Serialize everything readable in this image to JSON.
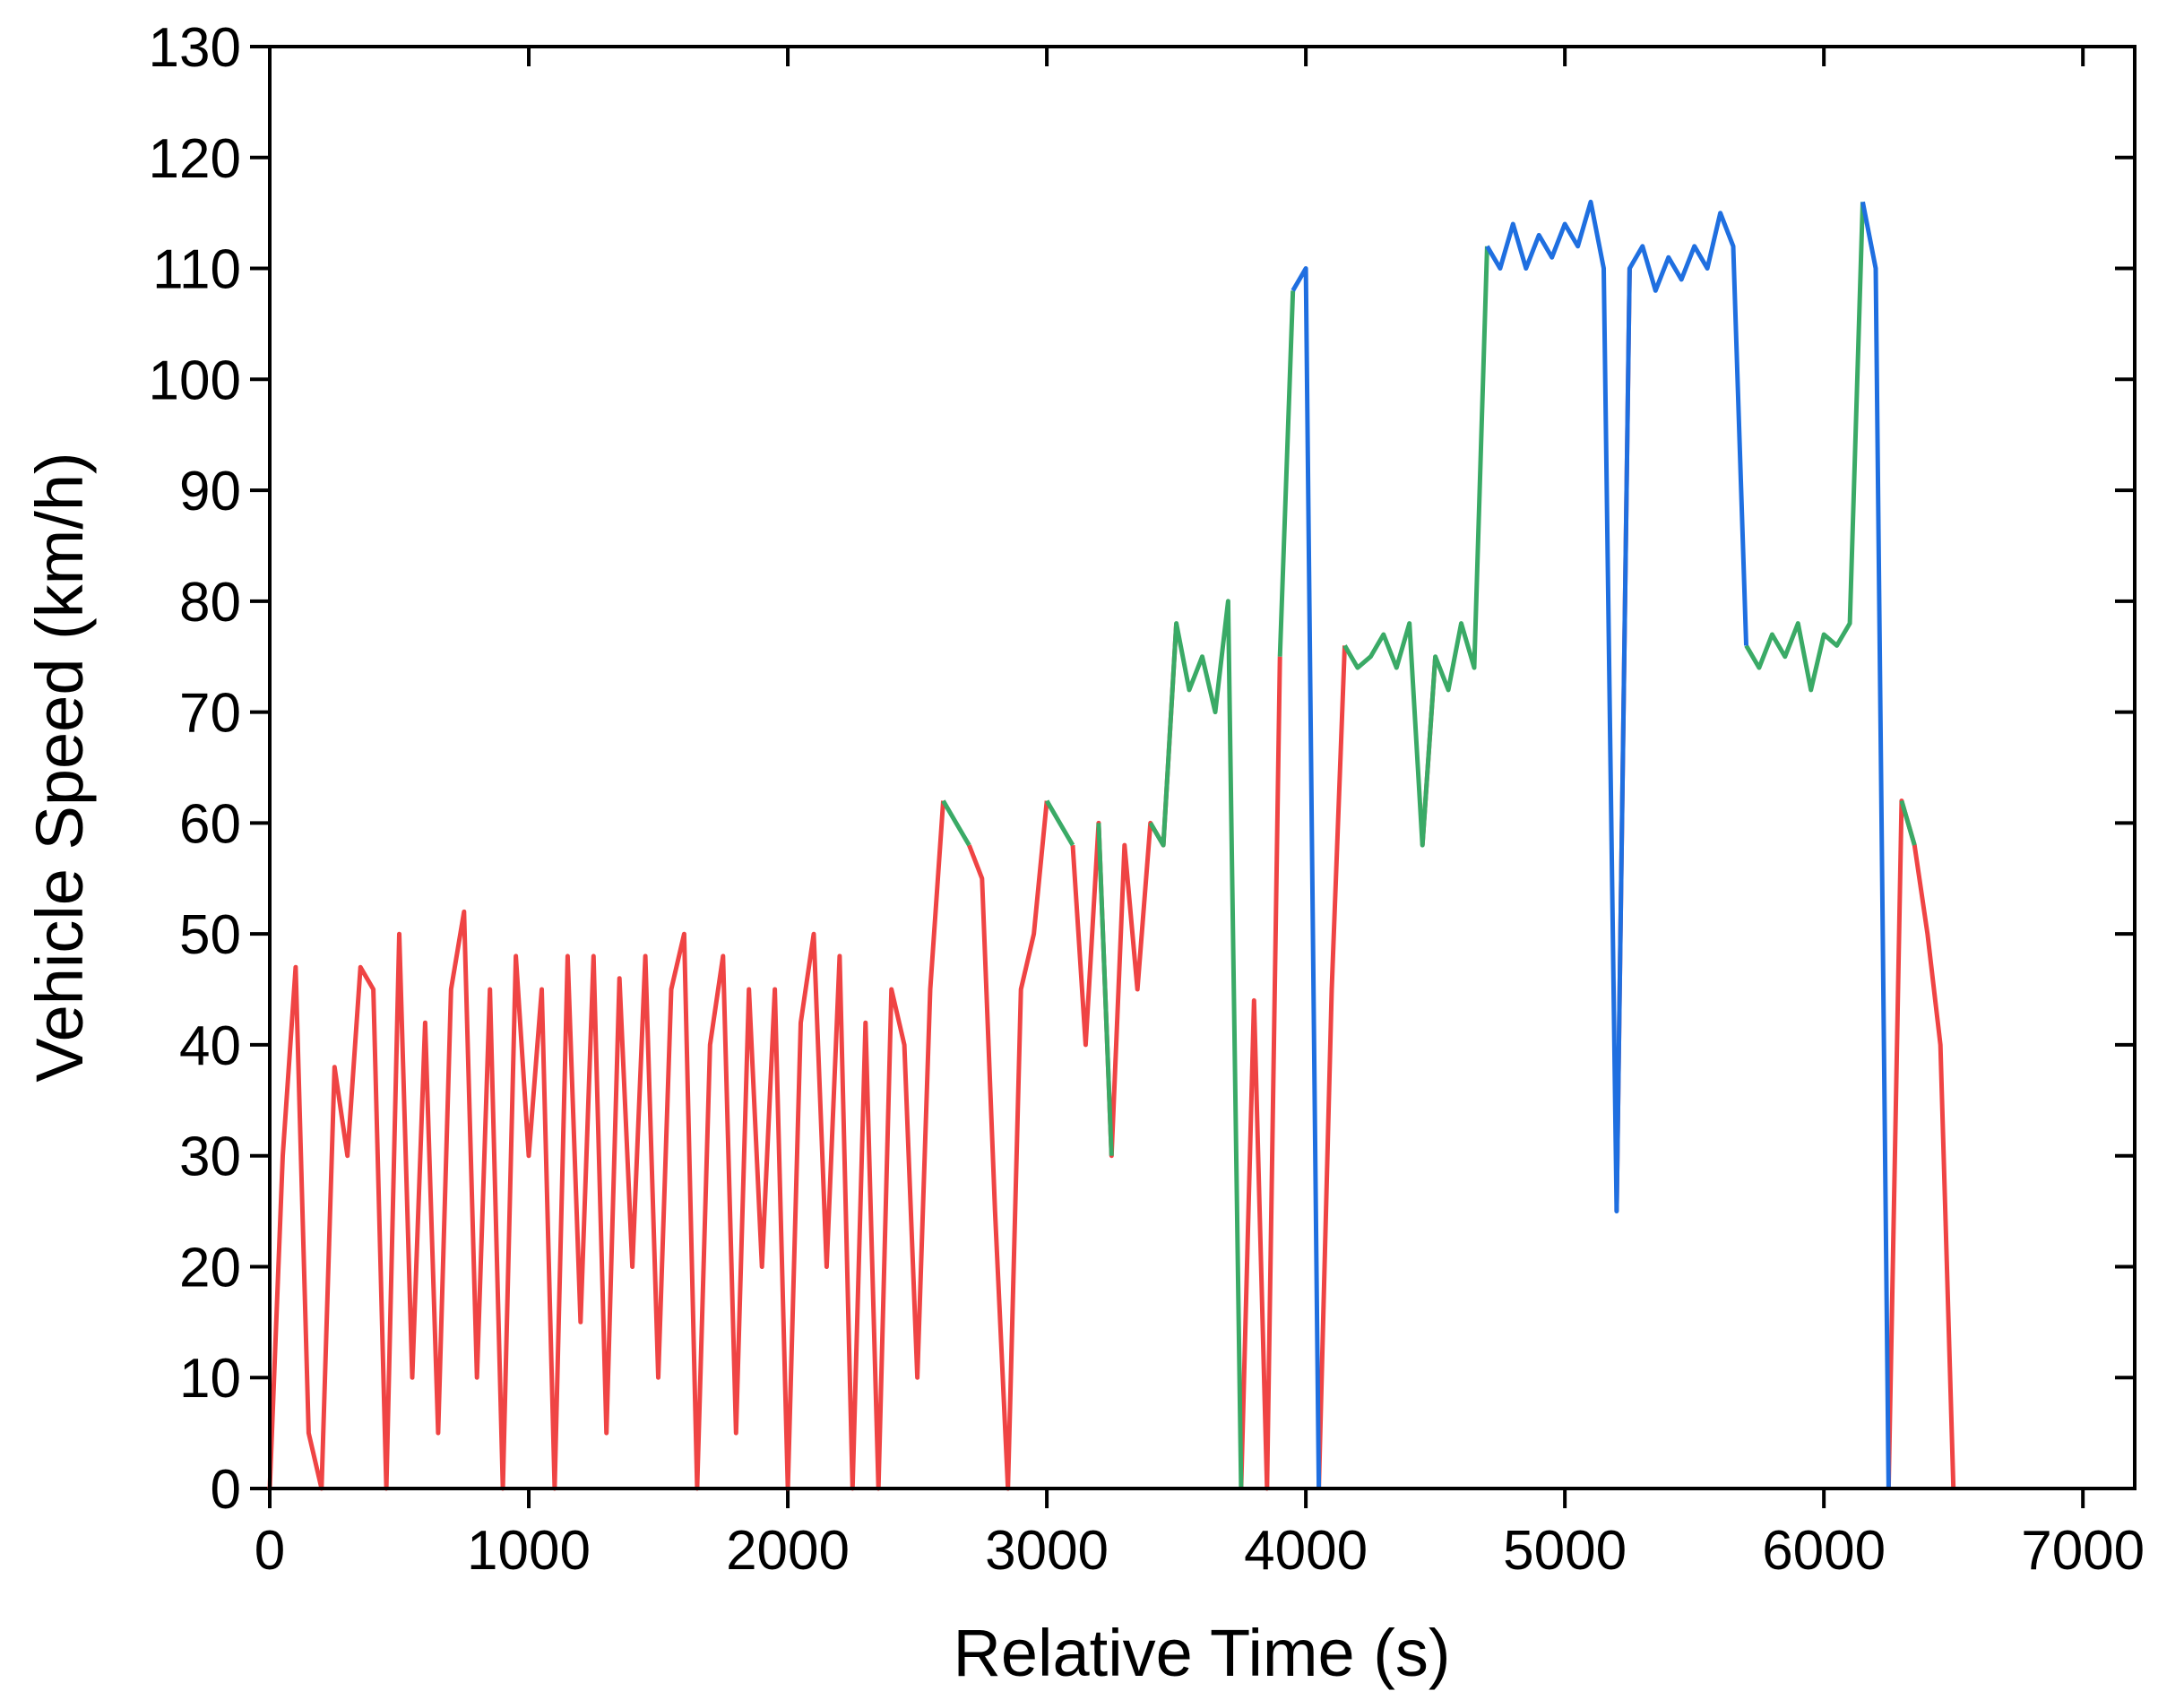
{
  "chart_data": {
    "type": "line",
    "xlabel": "Relative Time (s)",
    "ylabel": "Vehicle Speed (km/h)",
    "xlim": [
      0,
      7200
    ],
    "ylim": [
      0,
      130
    ],
    "xticks": [
      0,
      1000,
      2000,
      3000,
      4000,
      5000,
      6000,
      7000
    ],
    "yticks": [
      0,
      10,
      20,
      30,
      40,
      50,
      60,
      70,
      80,
      90,
      100,
      110,
      120,
      130
    ],
    "x": [
      0,
      50,
      100,
      150,
      200,
      250,
      300,
      350,
      400,
      450,
      500,
      550,
      600,
      650,
      700,
      750,
      800,
      850,
      900,
      950,
      1000,
      1050,
      1100,
      1150,
      1200,
      1250,
      1300,
      1350,
      1400,
      1450,
      1500,
      1550,
      1600,
      1650,
      1700,
      1750,
      1800,
      1850,
      1900,
      1950,
      2000,
      2050,
      2100,
      2150,
      2200,
      2250,
      2300,
      2350,
      2400,
      2450,
      2500,
      2550,
      2600,
      2650,
      2700,
      2750,
      2800,
      2850,
      2900,
      2950,
      3000,
      3050,
      3100,
      3150,
      3200,
      3250,
      3300,
      3350,
      3400,
      3450,
      3500,
      3550,
      3600,
      3650,
      3700,
      3750,
      3800,
      3850,
      3900,
      3950,
      4000,
      4050,
      4100,
      4150,
      4200,
      4250,
      4300,
      4350,
      4400,
      4450,
      4500,
      4550,
      4600,
      4650,
      4700,
      4750,
      4800,
      4850,
      4900,
      4950,
      5000,
      5050,
      5100,
      5150,
      5200,
      5250,
      5300,
      5350,
      5400,
      5450,
      5500,
      5550,
      5600,
      5650,
      5700,
      5750,
      5800,
      5850,
      5900,
      5950,
      6000,
      6050,
      6100,
      6150,
      6200,
      6250,
      6300,
      6350,
      6400,
      6450,
      6500
    ],
    "series": [
      {
        "color": "#ef4444",
        "values": [
          0,
          30,
          47,
          5,
          0,
          38,
          30,
          47,
          45,
          0,
          50,
          10,
          42,
          5,
          45,
          52,
          10,
          45,
          0,
          48,
          30,
          45,
          0,
          48,
          15,
          48,
          5,
          46,
          20,
          48,
          10,
          45,
          50,
          0,
          40,
          48,
          5,
          45,
          20,
          45,
          0,
          42,
          50,
          20,
          48,
          0,
          42,
          0,
          45,
          40,
          10,
          45,
          62,
          null,
          58,
          55,
          25,
          0,
          45,
          50,
          62,
          null,
          58,
          40,
          60,
          30,
          58,
          45,
          60,
          58,
          78,
          null,
          null,
          null,
          null,
          0,
          44,
          0,
          75,
          null,
          null,
          0,
          45,
          76,
          null,
          null,
          null,
          null,
          null,
          58,
          75,
          null,
          null,
          null,
          null,
          null,
          null,
          null,
          null,
          null,
          null,
          null,
          null,
          null,
          25,
          110,
          null,
          null,
          null,
          null,
          null,
          null,
          null,
          null,
          null,
          null,
          null,
          null,
          null,
          null,
          null,
          null,
          null,
          null,
          null,
          0,
          62,
          58,
          50,
          40,
          0
        ]
      },
      {
        "color": "#3aaa66",
        "values": [
          null,
          null,
          null,
          null,
          null,
          null,
          null,
          null,
          null,
          null,
          null,
          null,
          null,
          null,
          null,
          null,
          null,
          null,
          null,
          null,
          null,
          null,
          null,
          null,
          null,
          null,
          null,
          null,
          null,
          null,
          null,
          null,
          null,
          null,
          null,
          null,
          null,
          null,
          null,
          null,
          null,
          null,
          null,
          null,
          null,
          null,
          null,
          null,
          null,
          null,
          null,
          null,
          62,
          60,
          58,
          null,
          null,
          null,
          null,
          null,
          62,
          60,
          58,
          null,
          60,
          30,
          null,
          null,
          60,
          58,
          78,
          72,
          75,
          70,
          80,
          0,
          null,
          null,
          75,
          108,
          null,
          null,
          null,
          76,
          74,
          75,
          77,
          74,
          78,
          58,
          75,
          72,
          78,
          74,
          112,
          null,
          null,
          null,
          null,
          null,
          null,
          null,
          null,
          null,
          null,
          null,
          null,
          null,
          null,
          null,
          null,
          null,
          null,
          null,
          76,
          74,
          77,
          75,
          78,
          72,
          77,
          76,
          78,
          116,
          null,
          null,
          62,
          58,
          null,
          null,
          null
        ]
      },
      {
        "color": "#1f6fe0",
        "values": [
          null,
          null,
          null,
          null,
          null,
          null,
          null,
          null,
          null,
          null,
          null,
          null,
          null,
          null,
          null,
          null,
          null,
          null,
          null,
          null,
          null,
          null,
          null,
          null,
          null,
          null,
          null,
          null,
          null,
          null,
          null,
          null,
          null,
          null,
          null,
          null,
          null,
          null,
          null,
          null,
          null,
          null,
          null,
          null,
          null,
          null,
          null,
          null,
          null,
          null,
          null,
          null,
          null,
          null,
          null,
          null,
          null,
          null,
          null,
          null,
          null,
          null,
          null,
          null,
          null,
          null,
          null,
          null,
          null,
          null,
          null,
          null,
          null,
          null,
          null,
          null,
          null,
          null,
          null,
          108,
          110,
          0,
          null,
          null,
          null,
          null,
          null,
          null,
          null,
          null,
          null,
          null,
          null,
          null,
          112,
          110,
          114,
          110,
          113,
          111,
          114,
          112,
          116,
          110,
          25,
          110,
          112,
          108,
          111,
          109,
          112,
          110,
          115,
          112,
          76,
          null,
          null,
          null,
          null,
          null,
          null,
          null,
          null,
          116,
          110,
          0,
          null,
          null,
          null,
          null,
          null
        ]
      }
    ]
  }
}
